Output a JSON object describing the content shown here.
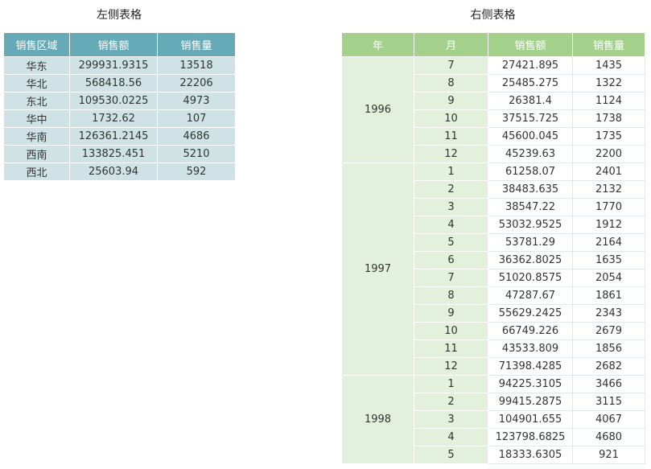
{
  "left": {
    "title": "左侧表格",
    "headers": [
      "销售区域",
      "销售额",
      "销售量"
    ],
    "rows": [
      [
        "华东",
        "299931.9315",
        "13518"
      ],
      [
        "华北",
        "568418.56",
        "22206"
      ],
      [
        "东北",
        "109530.0225",
        "4973"
      ],
      [
        "华中",
        "1732.62",
        "107"
      ],
      [
        "华南",
        "126361.2145",
        "4686"
      ],
      [
        "西南",
        "133825.451",
        "5210"
      ],
      [
        "西北",
        "25603.94",
        "592"
      ]
    ]
  },
  "right": {
    "title": "右侧表格",
    "headers": [
      "年",
      "月",
      "销售额",
      "销售量"
    ],
    "groups": [
      {
        "year": "1996",
        "rows": [
          [
            "7",
            "27421.895",
            "1435"
          ],
          [
            "8",
            "25485.275",
            "1322"
          ],
          [
            "9",
            "26381.4",
            "1124"
          ],
          [
            "10",
            "37515.725",
            "1738"
          ],
          [
            "11",
            "45600.045",
            "1735"
          ],
          [
            "12",
            "45239.63",
            "2200"
          ]
        ]
      },
      {
        "year": "1997",
        "rows": [
          [
            "1",
            "61258.07",
            "2401"
          ],
          [
            "2",
            "38483.635",
            "2132"
          ],
          [
            "3",
            "38547.22",
            "1770"
          ],
          [
            "4",
            "53032.9525",
            "1912"
          ],
          [
            "5",
            "53781.29",
            "2164"
          ],
          [
            "6",
            "36362.8025",
            "1635"
          ],
          [
            "7",
            "51020.8575",
            "2054"
          ],
          [
            "8",
            "47287.67",
            "1861"
          ],
          [
            "9",
            "55629.2425",
            "2343"
          ],
          [
            "10",
            "66749.226",
            "2679"
          ],
          [
            "11",
            "43533.809",
            "1856"
          ],
          [
            "12",
            "71398.4285",
            "2682"
          ]
        ]
      },
      {
        "year": "1998",
        "rows": [
          [
            "1",
            "94225.3105",
            "3466"
          ],
          [
            "2",
            "99415.2875",
            "3115"
          ],
          [
            "3",
            "104901.655",
            "4067"
          ],
          [
            "4",
            "123798.6825",
            "4680"
          ],
          [
            "5",
            "18333.6305",
            "921"
          ]
        ]
      }
    ]
  }
}
